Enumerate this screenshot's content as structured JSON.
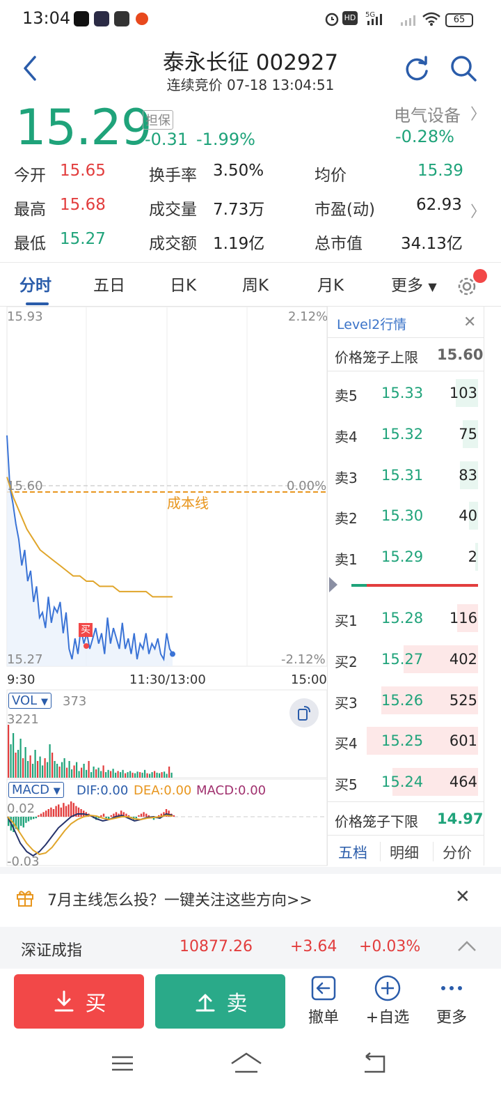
{
  "status_bar": {
    "time": "13:04",
    "battery": "65",
    "signal": "5G"
  },
  "header": {
    "title": "泰永长征 002927",
    "subtitle": "连续竞价 07-18 13:04:51"
  },
  "quote": {
    "price": "15.29",
    "margin_tag": "担保",
    "change": "-0.31",
    "change_pct": "-1.99%",
    "sector_name": "电气设备",
    "sector_change": "-0.28%"
  },
  "stats": [
    {
      "label": "今开",
      "value": "15.65",
      "color": "red"
    },
    {
      "label": "最高",
      "value": "15.68",
      "color": "red"
    },
    {
      "label": "最低",
      "value": "15.27",
      "color": "green"
    },
    {
      "label": "换手率",
      "value": "3.50%",
      "color": "dark"
    },
    {
      "label": "成交量",
      "value": "7.73万",
      "color": "dark"
    },
    {
      "label": "成交额",
      "value": "1.19亿",
      "color": "dark"
    },
    {
      "label": "均价",
      "value": "15.39",
      "color": "green"
    },
    {
      "label": "市盈(动)",
      "value": "62.93",
      "color": "dark"
    },
    {
      "label": "总市值",
      "value": "34.13亿",
      "color": "dark"
    }
  ],
  "tabs": [
    "分时",
    "五日",
    "日K",
    "周K",
    "月K",
    "更多"
  ],
  "chart": {
    "price_high": "15.93",
    "price_low": "15.27",
    "pct_high": "2.12%",
    "pct_low": "-2.12%",
    "ref_price": "15.60",
    "ref_pct": "0.00%",
    "cost_line_label": "成本线",
    "buy_marker": "买",
    "time_start": "9:30",
    "time_mid": "11:30/13:00",
    "time_end": "15:00",
    "vol_selector": "VOL",
    "vol_value": "373",
    "vol_max": "3221",
    "macd_selector": "MACD",
    "dif": "DIF:0.00",
    "dea": "DEA:0.00",
    "macd": "MACD:0.00",
    "macd_high": "0.02",
    "macd_low": "-0.03",
    "price_series": [
      15.7,
      15.6,
      15.57,
      15.53,
      15.5,
      15.45,
      15.48,
      15.42,
      15.44,
      15.38,
      15.41,
      15.35,
      15.36,
      15.33,
      15.39,
      15.34,
      15.37,
      15.36,
      15.38,
      15.32,
      15.36,
      15.29,
      15.27,
      15.31,
      15.28,
      15.33,
      15.3,
      15.32,
      15.29,
      15.31,
      15.33,
      15.3,
      15.32,
      15.28,
      15.35,
      15.3,
      15.33,
      15.31,
      15.29,
      15.34,
      15.29,
      15.31,
      15.28,
      15.32,
      15.27,
      15.3,
      15.29,
      15.32,
      15.28,
      15.3,
      15.29,
      15.31,
      15.28,
      15.27,
      15.32,
      15.29,
      15.28
    ],
    "avg_series": [
      15.62,
      15.58,
      15.55,
      15.52,
      15.5,
      15.48,
      15.47,
      15.46,
      15.45,
      15.44,
      15.43,
      15.43,
      15.42,
      15.42,
      15.41,
      15.41,
      15.41,
      15.4,
      15.4,
      15.4,
      15.4,
      15.4,
      15.39,
      15.39,
      15.39,
      15.39
    ]
  },
  "order_book": {
    "title": "Level2行情",
    "upper_limit_label": "价格笼子上限",
    "upper_limit": "15.60",
    "lower_limit_label": "价格笼子下限",
    "lower_limit": "14.97",
    "asks": [
      {
        "label": "卖5",
        "price": "15.33",
        "volume": "103",
        "bar": 0.2
      },
      {
        "label": "卖4",
        "price": "15.32",
        "volume": "75",
        "bar": 0.14
      },
      {
        "label": "卖3",
        "price": "15.31",
        "volume": "83",
        "bar": 0.16
      },
      {
        "label": "卖2",
        "price": "15.30",
        "volume": "40",
        "bar": 0.08
      },
      {
        "label": "卖1",
        "price": "15.29",
        "volume": "2",
        "bar": 0.01
      }
    ],
    "bids": [
      {
        "label": "买1",
        "price": "15.28",
        "volume": "116",
        "bar": 0.19
      },
      {
        "label": "买2",
        "price": "15.27",
        "volume": "402",
        "bar": 0.67
      },
      {
        "label": "买3",
        "price": "15.26",
        "volume": "525",
        "bar": 0.87
      },
      {
        "label": "买4",
        "price": "15.25",
        "volume": "601",
        "bar": 1.0
      },
      {
        "label": "买5",
        "price": "15.24",
        "volume": "464",
        "bar": 0.77
      }
    ],
    "tabs": [
      "五档",
      "明细",
      "分价"
    ]
  },
  "banner": {
    "text": "7月主线怎么投？一键关注这些方向>>"
  },
  "index": {
    "name": "深证成指",
    "value": "10877.26",
    "change": "+3.64",
    "change_pct": "+0.03%"
  },
  "actions": {
    "buy": "买",
    "sell": "卖",
    "cancel": "撤单",
    "watchlist": "+自选",
    "more": "更多"
  },
  "colors": {
    "up": "#e23d3d",
    "down": "#1fa37a",
    "accent": "#2a5caa",
    "cost_line": "#e8961e"
  }
}
